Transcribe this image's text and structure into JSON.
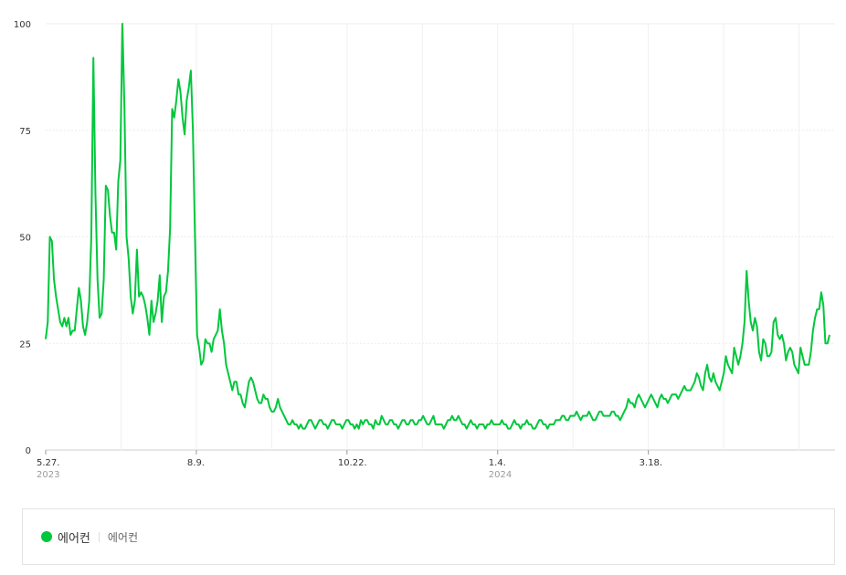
{
  "chart_data": {
    "type": "line",
    "x_axis_type": "weekly dates",
    "start_date": "2023-05-27",
    "end_date": "2024-06-15",
    "xticks": [
      {
        "label": "5.27.",
        "year": "2023",
        "date": "2023-05-27"
      },
      {
        "label": "8.9.",
        "year": "",
        "date": "2023-08-09"
      },
      {
        "label": "10.22.",
        "year": "",
        "date": "2023-10-22"
      },
      {
        "label": "1.4.",
        "year": "2024",
        "date": "2024-01-04"
      },
      {
        "label": "3.18.",
        "year": "",
        "date": "2024-03-18"
      }
    ],
    "yticks": [
      0,
      25,
      50,
      75,
      100
    ],
    "ylim": [
      0,
      100
    ],
    "grid": true,
    "legend_placement": "bottom",
    "series": [
      {
        "name": "에어컨",
        "color": "#00c73c",
        "values": [
          26,
          30,
          50,
          49,
          40,
          36,
          33,
          30,
          29,
          31,
          29,
          31,
          27,
          28,
          28,
          33,
          38,
          35,
          29,
          27,
          30,
          35,
          50,
          92,
          60,
          40,
          31,
          32,
          40,
          62,
          61,
          55,
          51,
          51,
          47,
          63,
          68,
          100,
          80,
          50,
          45,
          36,
          32,
          35,
          47,
          36,
          37,
          36,
          34,
          31,
          27,
          35,
          30,
          32,
          35,
          41,
          30,
          36,
          37,
          42,
          52,
          80,
          78,
          82,
          87,
          84,
          78,
          74,
          82,
          85,
          89,
          75,
          50,
          27,
          24,
          20,
          21,
          26,
          25,
          25,
          23,
          26,
          27,
          28,
          33,
          28,
          25,
          20,
          18,
          16,
          14,
          16,
          16,
          13,
          13,
          11,
          10,
          13,
          16,
          17,
          16,
          14,
          12,
          11,
          11,
          13,
          12,
          12,
          10,
          9,
          9,
          10,
          12,
          10,
          9,
          8,
          7,
          6,
          6,
          7,
          6,
          6,
          5,
          6,
          5,
          5,
          6,
          7,
          7,
          6,
          5,
          6,
          7,
          7,
          6,
          6,
          5,
          6,
          7,
          7,
          6,
          6,
          6,
          5,
          6,
          7,
          7,
          6,
          6,
          5,
          6,
          5,
          7,
          6,
          7,
          7,
          6,
          6,
          5,
          7,
          6,
          6,
          8,
          7,
          6,
          6,
          7,
          7,
          6,
          6,
          5,
          6,
          7,
          7,
          6,
          6,
          7,
          7,
          6,
          6,
          7,
          7,
          8,
          7,
          6,
          6,
          7,
          8,
          6,
          6,
          6,
          6,
          5,
          6,
          7,
          7,
          8,
          7,
          7,
          8,
          7,
          6,
          6,
          5,
          6,
          7,
          6,
          6,
          5,
          6,
          6,
          6,
          5,
          6,
          6,
          7,
          6,
          6,
          6,
          6,
          7,
          6,
          6,
          5,
          5,
          6,
          7,
          6,
          6,
          5,
          6,
          6,
          7,
          6,
          6,
          5,
          5,
          6,
          7,
          7,
          6,
          6,
          5,
          6,
          6,
          6,
          7,
          7,
          7,
          8,
          8,
          7,
          7,
          8,
          8,
          8,
          9,
          8,
          7,
          8,
          8,
          8,
          9,
          8,
          7,
          7,
          8,
          9,
          9,
          8,
          8,
          8,
          8,
          9,
          9,
          8,
          8,
          7,
          8,
          9,
          10,
          12,
          11,
          11,
          10,
          12,
          13,
          12,
          11,
          10,
          11,
          12,
          13,
          12,
          11,
          10,
          12,
          13,
          12,
          12,
          11,
          12,
          13,
          13,
          13,
          12,
          13,
          14,
          15,
          14,
          14,
          14,
          15,
          16,
          18,
          17,
          15,
          14,
          18,
          20,
          17,
          16,
          18,
          16,
          15,
          14,
          16,
          18,
          22,
          20,
          19,
          18,
          24,
          22,
          20,
          22,
          25,
          30,
          42,
          35,
          30,
          28,
          31,
          29,
          23,
          21,
          26,
          25,
          22,
          22,
          23,
          30,
          31,
          27,
          26,
          27,
          25,
          21,
          23,
          24,
          23,
          20,
          19,
          18,
          24,
          22,
          20,
          20,
          20,
          23,
          28,
          31,
          33,
          33,
          37,
          34,
          25,
          25,
          27
        ]
      }
    ]
  },
  "legend": {
    "series_name": "에어컨",
    "keywords": "에어컨",
    "color": "#00c73c"
  }
}
